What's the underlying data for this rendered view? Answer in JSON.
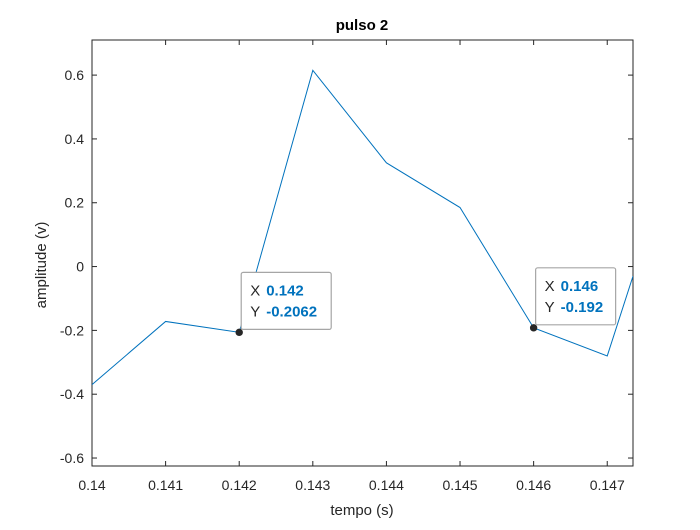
{
  "chart_data": {
    "type": "line",
    "title": "pulso 2",
    "xlabel": "tempo (s)",
    "ylabel": "amplitude (v)",
    "xlim": [
      0.14,
      0.14735
    ],
    "ylim": [
      -0.625,
      0.71
    ],
    "xticks": [
      {
        "value": 0.14,
        "label": "0.14"
      },
      {
        "value": 0.141,
        "label": "0.141"
      },
      {
        "value": 0.142,
        "label": "0.142"
      },
      {
        "value": 0.143,
        "label": "0.143"
      },
      {
        "value": 0.144,
        "label": "0.144"
      },
      {
        "value": 0.145,
        "label": "0.145"
      },
      {
        "value": 0.146,
        "label": "0.146"
      },
      {
        "value": 0.147,
        "label": "0.147"
      }
    ],
    "yticks": [
      {
        "value": -0.6,
        "label": "-0.6"
      },
      {
        "value": -0.4,
        "label": "-0.4"
      },
      {
        "value": -0.2,
        "label": "-0.2"
      },
      {
        "value": 0,
        "label": "0"
      },
      {
        "value": 0.2,
        "label": "0.2"
      },
      {
        "value": 0.4,
        "label": "0.4"
      },
      {
        "value": 0.6,
        "label": "0.6"
      }
    ],
    "grid": false,
    "series": [
      {
        "color": "#0072BD",
        "x": [
          0.14,
          0.141,
          0.142,
          0.143,
          0.144,
          0.145,
          0.146,
          0.147,
          0.14735
        ],
        "y": [
          -0.37,
          -0.172,
          -0.2062,
          0.615,
          0.325,
          0.185,
          -0.192,
          -0.28,
          -0.03
        ]
      }
    ],
    "datatips": [
      {
        "x": 0.142,
        "y": -0.2062,
        "x_label": "X",
        "x_text": "0.142",
        "y_label": "Y",
        "y_text": "-0.2062"
      },
      {
        "x": 0.146,
        "y": -0.192,
        "x_label": "X",
        "x_text": "0.146",
        "y_label": "Y",
        "y_text": "-0.192"
      }
    ],
    "colors": {
      "line": "#0072BD",
      "datatip_value": "#0072BD",
      "axes": "#262626"
    }
  }
}
